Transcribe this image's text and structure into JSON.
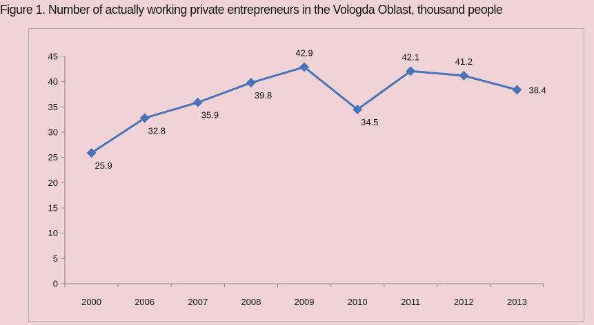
{
  "title": "Figure 1. Number of actually working private entrepreneurs in the Vologda Oblast, thousand people",
  "chart_data": {
    "type": "line",
    "title": "Figure 1. Number of actually working private entrepreneurs in the Vologda Oblast, thousand people",
    "categories": [
      "2000",
      "2006",
      "2007",
      "2008",
      "2009",
      "2010",
      "2011",
      "2012",
      "2013"
    ],
    "series": [
      {
        "values": [
          25.9,
          32.8,
          35.9,
          39.8,
          42.9,
          34.5,
          42.1,
          41.2,
          38.4
        ],
        "labels": [
          "25.9",
          "32.8",
          "35.9",
          "39.8",
          "42.9",
          "34.5",
          "42.1",
          "41.2",
          "38.4"
        ],
        "label_positions": [
          "below",
          "below",
          "below",
          "below",
          "above",
          "below",
          "above",
          "above",
          "right"
        ]
      }
    ],
    "ylim": [
      0,
      45
    ],
    "yticks": [
      0,
      5,
      10,
      15,
      20,
      25,
      30,
      35,
      40,
      45
    ],
    "xlabel": "",
    "ylabel": "",
    "grid": false,
    "legend": "none",
    "colors": {
      "line": "#4a72b8",
      "marker": "#4a72b8",
      "background": "#efd3d6",
      "axis": "#868686",
      "frame": "#a9a9a9"
    }
  }
}
